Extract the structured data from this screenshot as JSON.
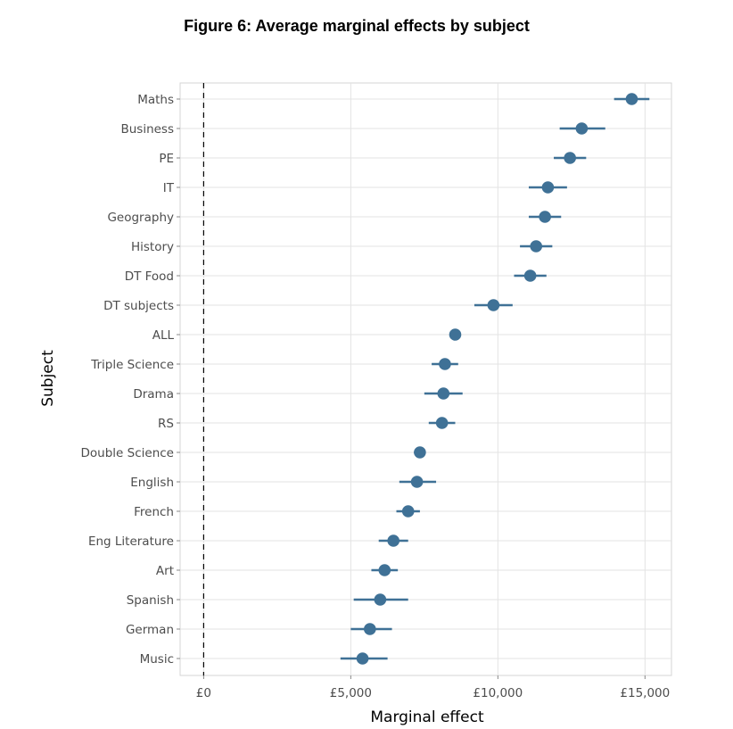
{
  "chart_data": {
    "type": "scatter",
    "title": "Figure 6: Average marginal effects by subject",
    "xlabel": "Marginal effect",
    "ylabel": "Subject",
    "xlim": [
      -800,
      15900
    ],
    "x_ticks": [
      0,
      5000,
      10000,
      15000
    ],
    "x_tick_labels": [
      "£0",
      "£5,000",
      "£10,000",
      "£15,000"
    ],
    "reference_line": 0,
    "grid": true,
    "point_color": "#3f7196",
    "points": [
      {
        "subject": "Maths",
        "estimate": 14550,
        "ci_low": 13950,
        "ci_high": 15150
      },
      {
        "subject": "Business",
        "estimate": 12850,
        "ci_low": 12100,
        "ci_high": 13650
      },
      {
        "subject": "PE",
        "estimate": 12450,
        "ci_low": 11900,
        "ci_high": 13000
      },
      {
        "subject": "IT",
        "estimate": 11700,
        "ci_low": 11050,
        "ci_high": 12350
      },
      {
        "subject": "Geography",
        "estimate": 11600,
        "ci_low": 11050,
        "ci_high": 12150
      },
      {
        "subject": "History",
        "estimate": 11300,
        "ci_low": 10750,
        "ci_high": 11850
      },
      {
        "subject": "DT Food",
        "estimate": 11100,
        "ci_low": 10550,
        "ci_high": 11650
      },
      {
        "subject": "DT subjects",
        "estimate": 9850,
        "ci_low": 9200,
        "ci_high": 10500
      },
      {
        "subject": "ALL",
        "estimate": 8550,
        "ci_low": 8450,
        "ci_high": 8650
      },
      {
        "subject": "Triple Science",
        "estimate": 8200,
        "ci_low": 7750,
        "ci_high": 8650
      },
      {
        "subject": "Drama",
        "estimate": 8150,
        "ci_low": 7500,
        "ci_high": 8800
      },
      {
        "subject": "RS",
        "estimate": 8100,
        "ci_low": 7650,
        "ci_high": 8550
      },
      {
        "subject": "Double Science",
        "estimate": 7350,
        "ci_low": 7150,
        "ci_high": 7550
      },
      {
        "subject": "English",
        "estimate": 7250,
        "ci_low": 6650,
        "ci_high": 7900
      },
      {
        "subject": "French",
        "estimate": 6950,
        "ci_low": 6550,
        "ci_high": 7350
      },
      {
        "subject": "Eng Literature",
        "estimate": 6450,
        "ci_low": 5950,
        "ci_high": 6950
      },
      {
        "subject": "Art",
        "estimate": 6150,
        "ci_low": 5700,
        "ci_high": 6600
      },
      {
        "subject": "Spanish",
        "estimate": 6000,
        "ci_low": 5100,
        "ci_high": 6950
      },
      {
        "subject": "German",
        "estimate": 5650,
        "ci_low": 5000,
        "ci_high": 6400
      },
      {
        "subject": "Music",
        "estimate": 5400,
        "ci_low": 4650,
        "ci_high": 6250
      }
    ]
  }
}
